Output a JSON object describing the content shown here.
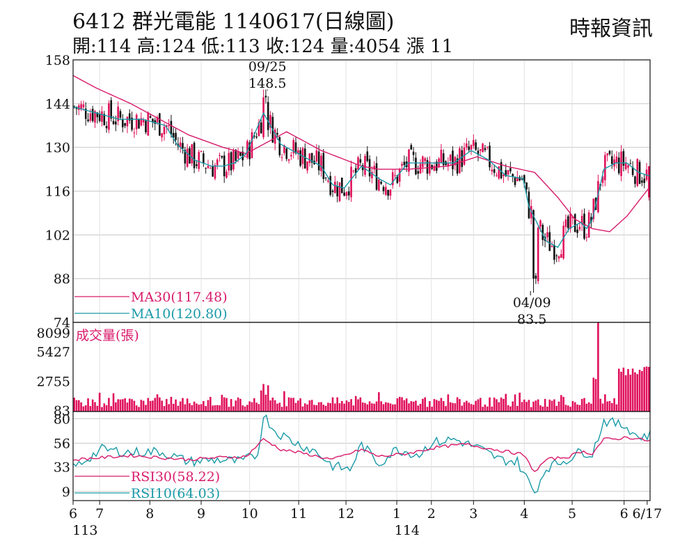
{
  "header": {
    "title": "6412  群光電能 1140617(日線圖)",
    "ohlc": "開:114 高:124 低:113 收:124 量:4054 漲 11",
    "source": "時報資訊"
  },
  "colors": {
    "up": "#e0105a",
    "down": "#111111",
    "ma30": "#d81b6b",
    "ma10": "#1a9aa8",
    "grid": "#c8c8c8"
  },
  "chart_data": [
    {
      "type": "candlestick",
      "panel": "price",
      "y_ticks": [
        "158",
        "144",
        "130",
        "116",
        "102",
        "88",
        "74"
      ],
      "y_tick_values": [
        158,
        144,
        130,
        116,
        102,
        88,
        74
      ],
      "ylim": [
        74,
        158
      ],
      "legend": [
        {
          "name": "MA30(117.48)",
          "value": 117.48,
          "color": "#d81b6b"
        },
        {
          "name": "MA10(120.80)",
          "value": 120.8,
          "color": "#1a9aa8"
        }
      ],
      "annotations": [
        {
          "date": "09/25",
          "value": "148.5",
          "kind": "high"
        },
        {
          "date": "04/09",
          "value": "83.5",
          "kind": "low"
        }
      ],
      "last_bar": {
        "open": 114,
        "high": 124,
        "low": 113,
        "close": 124
      },
      "ma30_profile": [
        [
          0,
          153
        ],
        [
          0.04,
          149
        ],
        [
          0.1,
          144
        ],
        [
          0.2,
          134
        ],
        [
          0.26,
          130
        ],
        [
          0.3,
          128
        ],
        [
          0.37,
          135
        ],
        [
          0.43,
          129
        ],
        [
          0.5,
          124
        ],
        [
          0.53,
          123
        ],
        [
          0.58,
          123
        ],
        [
          0.65,
          124
        ],
        [
          0.7,
          127
        ],
        [
          0.75,
          124
        ],
        [
          0.8,
          122
        ],
        [
          0.84,
          114
        ],
        [
          0.87,
          107
        ],
        [
          0.9,
          104
        ],
        [
          0.93,
          103
        ],
        [
          0.96,
          108
        ],
        [
          1,
          117.48
        ]
      ],
      "ma10_profile": [
        [
          0,
          143
        ],
        [
          0.04,
          141
        ],
        [
          0.08,
          139
        ],
        [
          0.12,
          139
        ],
        [
          0.16,
          137
        ],
        [
          0.18,
          131
        ],
        [
          0.21,
          126
        ],
        [
          0.24,
          124
        ],
        [
          0.26,
          124
        ],
        [
          0.28,
          125
        ],
        [
          0.3,
          128
        ],
        [
          0.33,
          141
        ],
        [
          0.36,
          131
        ],
        [
          0.4,
          127
        ],
        [
          0.43,
          124
        ],
        [
          0.45,
          118
        ],
        [
          0.47,
          117
        ],
        [
          0.5,
          124
        ],
        [
          0.53,
          120
        ],
        [
          0.55,
          118
        ],
        [
          0.58,
          125
        ],
        [
          0.62,
          125
        ],
        [
          0.66,
          125
        ],
        [
          0.69,
          129
        ],
        [
          0.72,
          126
        ],
        [
          0.75,
          121
        ],
        [
          0.78,
          120
        ],
        [
          0.79,
          111
        ],
        [
          0.82,
          100
        ],
        [
          0.84,
          98
        ],
        [
          0.86,
          104
        ],
        [
          0.88,
          106
        ],
        [
          0.89,
          104
        ],
        [
          0.9,
          107
        ],
        [
          0.92,
          123
        ],
        [
          0.94,
          125
        ],
        [
          0.96,
          125
        ],
        [
          0.98,
          122
        ],
        [
          1,
          120.8
        ]
      ]
    },
    {
      "type": "bar",
      "panel": "volume",
      "label": "成交量(張)",
      "y_ticks": [
        "8099",
        "5427",
        "2755",
        "83"
      ],
      "y_tick_values": [
        8099,
        5427,
        2755,
        83
      ],
      "ylim": [
        0,
        8099
      ],
      "last_value": 4054
    },
    {
      "type": "line",
      "panel": "rsi",
      "y_ticks": [
        "80",
        "56",
        "33",
        "9"
      ],
      "y_tick_values": [
        80,
        56,
        33,
        9
      ],
      "ylim": [
        0,
        87
      ],
      "legend": [
        {
          "name": "RSI30(58.22)",
          "value": 58.22,
          "color": "#d81b6b"
        },
        {
          "name": "RSI10(64.03)",
          "value": 64.03,
          "color": "#1a9aa8"
        }
      ],
      "rsi30_profile": [
        [
          0,
          40
        ],
        [
          0.1,
          44
        ],
        [
          0.15,
          42
        ],
        [
          0.2,
          40
        ],
        [
          0.25,
          42
        ],
        [
          0.3,
          43
        ],
        [
          0.33,
          60
        ],
        [
          0.36,
          50
        ],
        [
          0.4,
          46
        ],
        [
          0.45,
          40
        ],
        [
          0.5,
          50
        ],
        [
          0.53,
          43
        ],
        [
          0.58,
          46
        ],
        [
          0.63,
          52
        ],
        [
          0.68,
          55
        ],
        [
          0.72,
          51
        ],
        [
          0.76,
          47
        ],
        [
          0.78,
          45
        ],
        [
          0.8,
          28
        ],
        [
          0.82,
          40
        ],
        [
          0.86,
          43
        ],
        [
          0.88,
          48
        ],
        [
          0.9,
          46
        ],
        [
          0.92,
          60
        ],
        [
          0.94,
          60
        ],
        [
          0.96,
          62
        ],
        [
          1,
          58.22
        ]
      ],
      "rsi10_profile": [
        [
          0,
          32
        ],
        [
          0.05,
          50
        ],
        [
          0.1,
          47
        ],
        [
          0.15,
          48
        ],
        [
          0.2,
          38
        ],
        [
          0.25,
          40
        ],
        [
          0.29,
          38
        ],
        [
          0.32,
          45
        ],
        [
          0.33,
          84
        ],
        [
          0.35,
          68
        ],
        [
          0.38,
          58
        ],
        [
          0.42,
          48
        ],
        [
          0.45,
          34
        ],
        [
          0.48,
          30
        ],
        [
          0.5,
          55
        ],
        [
          0.53,
          36
        ],
        [
          0.56,
          50
        ],
        [
          0.6,
          45
        ],
        [
          0.62,
          56
        ],
        [
          0.66,
          60
        ],
        [
          0.7,
          52
        ],
        [
          0.74,
          40
        ],
        [
          0.77,
          38
        ],
        [
          0.8,
          8
        ],
        [
          0.82,
          32
        ],
        [
          0.86,
          41
        ],
        [
          0.88,
          48
        ],
        [
          0.9,
          46
        ],
        [
          0.92,
          78
        ],
        [
          0.94,
          75
        ],
        [
          0.96,
          72
        ],
        [
          0.98,
          62
        ],
        [
          1,
          64.03
        ]
      ]
    }
  ],
  "x_axis": {
    "months": [
      {
        "label": "6",
        "pos": 0.0
      },
      {
        "label": "7",
        "pos": 0.046
      },
      {
        "label": "8",
        "pos": 0.133
      },
      {
        "label": "9",
        "pos": 0.222
      },
      {
        "label": "10",
        "pos": 0.306
      },
      {
        "label": "11",
        "pos": 0.391
      },
      {
        "label": "12",
        "pos": 0.473
      },
      {
        "label": "1",
        "pos": 0.561
      },
      {
        "label": "2",
        "pos": 0.621
      },
      {
        "label": "3",
        "pos": 0.694
      },
      {
        "label": "4",
        "pos": 0.782
      },
      {
        "label": "5",
        "pos": 0.865
      },
      {
        "label": "6",
        "pos": 0.955
      },
      {
        "label": "6/17",
        "pos": 0.995
      }
    ],
    "years": [
      {
        "label": "113",
        "pos": 0.004
      },
      {
        "label": "114",
        "pos": 0.562
      }
    ]
  }
}
